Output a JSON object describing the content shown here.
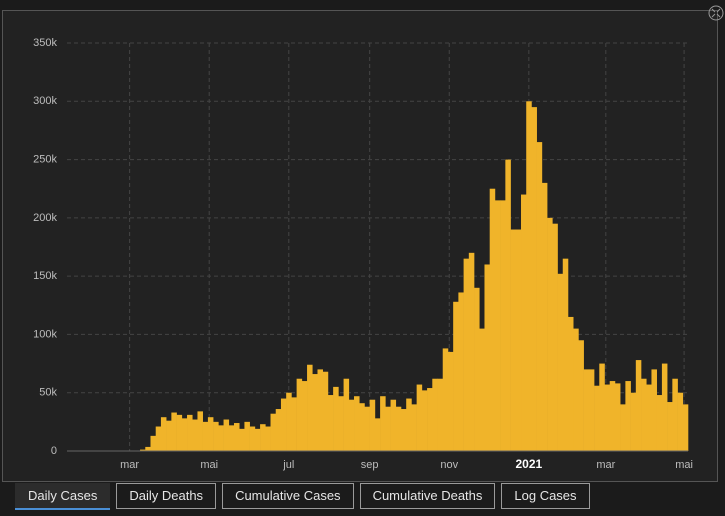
{
  "chart_data": {
    "type": "bar",
    "color": "#f0b42a",
    "grid": true,
    "xlim": [
      12,
      488
    ],
    "ylim": [
      0,
      350000
    ],
    "yticks": [
      0,
      {
        "value": 50000,
        "label": "50k"
      },
      {
        "value": 100000,
        "label": "100k"
      },
      {
        "value": 150000,
        "label": "150k"
      },
      {
        "value": 200000,
        "label": "200k"
      },
      {
        "value": 250000,
        "label": "250k"
      },
      {
        "value": 300000,
        "label": "300k"
      },
      {
        "value": 350000,
        "label": "350k"
      }
    ],
    "xticks": [
      {
        "value": 60,
        "label": "mar"
      },
      {
        "value": 121,
        "label": "mai"
      },
      {
        "value": 182,
        "label": "jul"
      },
      {
        "value": 244,
        "label": "sep"
      },
      {
        "value": 305,
        "label": "nov"
      },
      {
        "value": 366,
        "label": "2021"
      },
      {
        "value": 425,
        "label": "mar"
      },
      {
        "value": 485,
        "label": "mai"
      }
    ],
    "x": [
      22,
      26,
      30,
      34,
      38,
      42,
      46,
      50,
      54,
      58,
      62,
      66,
      70,
      74,
      78,
      82,
      86,
      90,
      94,
      98,
      102,
      106,
      110,
      114,
      118,
      122,
      126,
      130,
      134,
      138,
      142,
      146,
      150,
      154,
      158,
      162,
      166,
      170,
      174,
      178,
      182,
      186,
      190,
      194,
      198,
      202,
      206,
      210,
      214,
      218,
      222,
      226,
      230,
      234,
      238,
      242,
      246,
      250,
      254,
      258,
      262,
      266,
      270,
      274,
      278,
      282,
      286,
      290,
      294,
      298,
      302,
      306,
      310,
      314,
      318,
      322,
      326,
      330,
      334,
      338,
      342,
      346,
      350,
      354,
      358,
      362,
      366,
      370,
      374,
      378,
      382,
      386,
      390,
      394,
      398,
      402,
      406,
      410,
      414,
      418,
      422,
      426,
      430,
      434,
      438,
      442,
      446,
      450,
      454,
      458,
      462,
      466,
      470,
      474,
      478,
      482,
      486
    ],
    "values": [
      0,
      0,
      0,
      0,
      0,
      0,
      0,
      0,
      0,
      0,
      100,
      400,
      1200,
      3500,
      13000,
      21000,
      29000,
      26000,
      33000,
      31000,
      28000,
      31000,
      27000,
      34000,
      25000,
      29000,
      25000,
      22000,
      27000,
      22000,
      24000,
      19000,
      25000,
      21000,
      19000,
      23000,
      21000,
      32000,
      36000,
      45000,
      50000,
      46000,
      62000,
      60000,
      74000,
      66000,
      70000,
      68000,
      48000,
      55000,
      47000,
      62000,
      44000,
      47000,
      41000,
      38000,
      44000,
      28000,
      47000,
      38000,
      44000,
      38000,
      36000,
      45000,
      40000,
      57000,
      52000,
      54000,
      62000,
      62000,
      88000,
      85000,
      128000,
      136000,
      165000,
      170000,
      140000,
      105000,
      160000,
      225000,
      215000,
      215000,
      250000,
      190000,
      190000,
      220000,
      300000,
      295000,
      265000,
      230000,
      200000,
      195000,
      152000,
      165000,
      115000,
      105000,
      95000,
      70000,
      70000,
      56000,
      75000,
      57000,
      60000,
      58000,
      40000,
      60000,
      50000,
      78000,
      62000,
      57000,
      70000,
      48000,
      75000,
      42000,
      62000,
      50000,
      40000
    ]
  },
  "tabs": [
    "Daily Cases",
    "Daily Deaths",
    "Cumulative Cases",
    "Cumulative Deaths",
    "Log Cases"
  ]
}
